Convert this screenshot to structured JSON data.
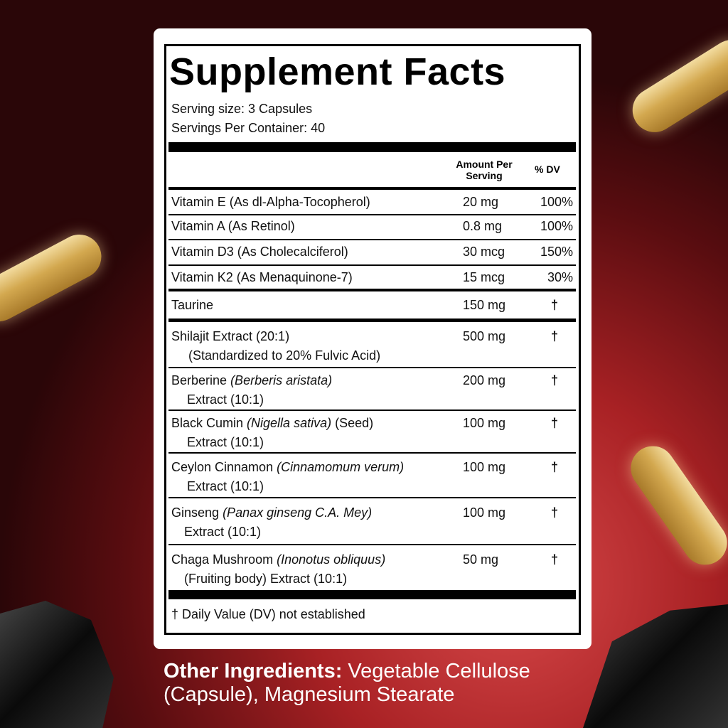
{
  "label": {
    "title": "Supplement Facts",
    "serving_size": "Serving size: 3 Capsules",
    "servings_per_container": "Servings Per Container: 40",
    "header": {
      "amount": "Amount Per Serving",
      "dv": "% DV"
    },
    "rows": [
      {
        "name": "Vitamin E (As dl-Alpha-Tocopherol)",
        "amount": "20 mg",
        "dv": "100%"
      },
      {
        "name": "Vitamin A  (As Retinol)",
        "amount": "0.8 mg",
        "dv": "100%"
      },
      {
        "name": "Vitamin D3 (As Cholecalciferol)",
        "amount": "30 mcg",
        "dv": "150%"
      },
      {
        "name": "Vitamin K2 (As Menaquinone-7)",
        "amount": "15 mcg",
        "dv": "30%"
      },
      {
        "name": "Taurine",
        "amount": "150 mg",
        "dv": "†"
      },
      {
        "name": "Shilajit Extract (20:1)",
        "line2": "(Standardized to 20% Fulvic Acid)",
        "amount": "500 mg",
        "dv": "†"
      },
      {
        "name": "Berberine",
        "latin": "(Berberis aristata)",
        "line2": "Extract (10:1)",
        "amount": "200 mg",
        "dv": "†"
      },
      {
        "name": "Black Cumin",
        "latin": "(Nigella sativa)",
        "part": "(Seed)",
        "line2": "Extract (10:1)",
        "amount": "100 mg",
        "dv": "†"
      },
      {
        "name": "Ceylon Cinnamon",
        "latin": "(Cinnamomum verum)",
        "line2": "Extract (10:1)",
        "amount": "100 mg",
        "dv": "†"
      },
      {
        "name": "Ginseng",
        "latin": "(Panax ginseng C.A. Mey)",
        "line2": "Extract (10:1)",
        "amount": "100 mg",
        "dv": "†"
      },
      {
        "name": "Chaga Mushroom",
        "latin": "(Inonotus obliquus)",
        "line2": "(Fruiting body) Extract (10:1)",
        "amount": "50 mg",
        "dv": "†"
      }
    ],
    "footnote": "†  Daily Value (DV) not established"
  },
  "other_ingredients": {
    "heading": "Other Ingredients:",
    "text": "Vegetable Cellulose (Capsule), Magnesium Stearate"
  }
}
